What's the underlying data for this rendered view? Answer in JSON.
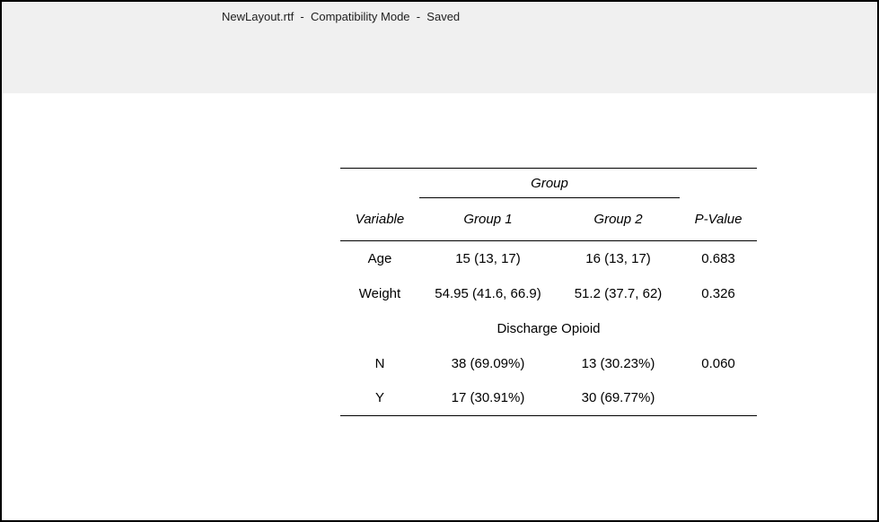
{
  "window": {
    "title": "NewLayout.rtf  -  Compatibility Mode  -  Saved"
  },
  "colors": {
    "titlebar_bg": "#f0f0f0",
    "window_border": "#000000",
    "page_bg": "#ffffff",
    "table_text": "#000000",
    "title_text": "#1e1e1e"
  },
  "table": {
    "spanner_label": "Group",
    "headers": {
      "variable": "Variable",
      "group1": "Group 1",
      "group2": "Group 2",
      "p_value": "P-Value"
    },
    "rows": [
      {
        "variable": "Age",
        "group1": "15 (13, 17)",
        "group2": "16 (13, 17)",
        "p_value": "0.683"
      },
      {
        "variable": "Weight",
        "group1": "54.95 (41.6, 66.9)",
        "group2": "51.2 (37.7, 62)",
        "p_value": "0.326"
      },
      {
        "variable": "Discharge Opioid"
      },
      {
        "variable": "N",
        "group1": "38 (69.09%)",
        "group2": "13 (30.23%)",
        "p_value": "0.060"
      },
      {
        "variable": "Y",
        "group1": "17 (30.91%)",
        "group2": "30 (69.77%)",
        "p_value": ""
      }
    ]
  }
}
